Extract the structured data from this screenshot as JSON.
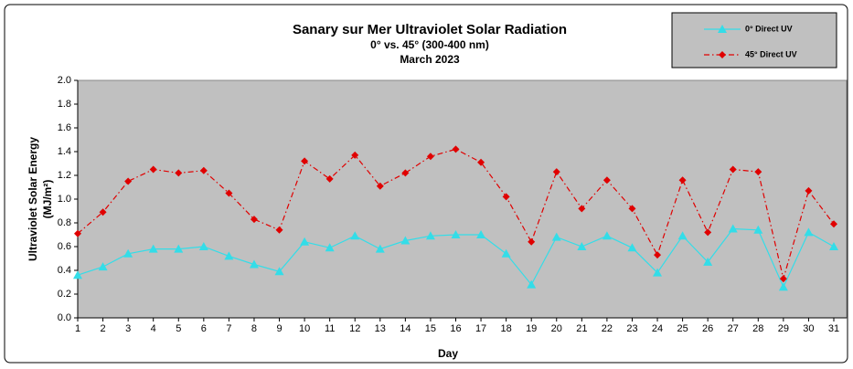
{
  "chart_data": {
    "type": "line",
    "title": "Sanary sur Mer Ultraviolet Solar Radiation",
    "subtitle": [
      "0° vs. 45° (300-400 nm)",
      "March 2023"
    ],
    "x_label": "Day",
    "y_label": [
      "Ultraviolet Solar Energy",
      "(MJ/m²)"
    ],
    "x": [
      1,
      2,
      3,
      4,
      5,
      6,
      7,
      8,
      9,
      10,
      11,
      12,
      13,
      14,
      15,
      16,
      17,
      18,
      19,
      20,
      21,
      22,
      23,
      24,
      25,
      26,
      27,
      28,
      29,
      30,
      31
    ],
    "xlim": [
      1,
      31
    ],
    "xticks": [
      1,
      2,
      3,
      4,
      5,
      6,
      7,
      8,
      9,
      10,
      11,
      12,
      13,
      14,
      15,
      16,
      17,
      18,
      19,
      20,
      21,
      22,
      23,
      24,
      25,
      26,
      27,
      28,
      29,
      30,
      31
    ],
    "ylim": [
      0,
      2
    ],
    "yticks": [
      {
        "value": 0,
        "label": "0.0"
      },
      {
        "value": 0.2,
        "label": "0.2"
      },
      {
        "value": 0.4,
        "label": "0.4"
      },
      {
        "value": 0.6,
        "label": "0.6"
      },
      {
        "value": 0.8,
        "label": "0.8"
      },
      {
        "value": 1,
        "label": "1.0"
      },
      {
        "value": 1.2,
        "label": "1.2"
      },
      {
        "value": 1.4,
        "label": "1.4"
      },
      {
        "value": 1.6,
        "label": "1.6"
      },
      {
        "value": 1.8,
        "label": "1.8"
      },
      {
        "value": 2,
        "label": "2.0"
      }
    ],
    "grid": false,
    "legend": "top-right",
    "series": [
      {
        "name": "0° Direct UV",
        "color": "#33dde8",
        "marker": "triangle",
        "values": [
          0.36,
          0.43,
          0.54,
          0.58,
          0.58,
          0.6,
          0.52,
          0.45,
          0.39,
          0.64,
          0.59,
          0.69,
          0.58,
          0.65,
          0.69,
          0.7,
          0.7,
          0.54,
          0.28,
          0.68,
          0.6,
          0.69,
          0.59,
          0.38,
          0.69,
          0.47,
          0.75,
          0.74,
          0.26,
          0.72,
          0.6
        ]
      },
      {
        "name": "45° Direct UV",
        "color": "#e00000",
        "marker": "diamond",
        "values": [
          0.71,
          0.89,
          1.15,
          1.25,
          1.22,
          1.24,
          1.05,
          0.83,
          0.74,
          1.32,
          1.17,
          1.37,
          1.11,
          1.22,
          1.36,
          1.42,
          1.31,
          1.02,
          0.64,
          1.23,
          0.92,
          1.16,
          0.92,
          0.53,
          1.16,
          0.72,
          1.25,
          1.23,
          0.33,
          1.07,
          0.79
        ]
      }
    ]
  }
}
